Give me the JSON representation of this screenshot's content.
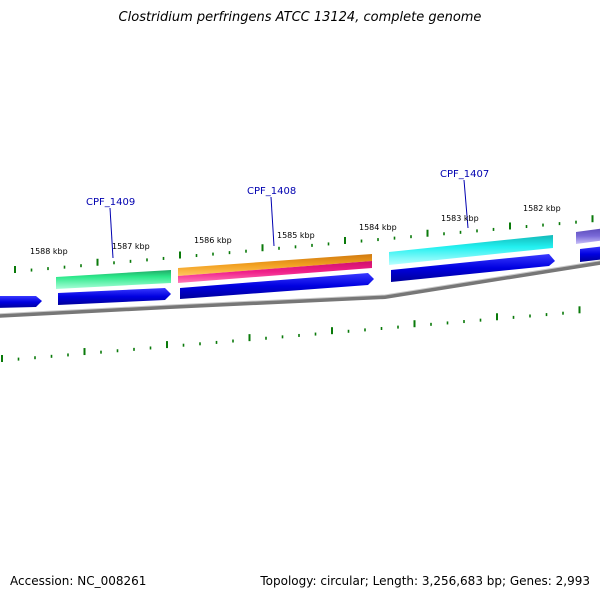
{
  "header": {
    "title": "Clostridium perfringens ATCC 13124, complete genome"
  },
  "footer": {
    "accession": "Accession: NC_008261",
    "summary": "Topology: circular; Length: 3,256,683 bp; Genes: 2,993"
  },
  "map": {
    "kbp_labels": [
      "1588 kbp",
      "1587 kbp",
      "1586 kbp",
      "1585 kbp",
      "1584 kbp",
      "1583 kbp",
      "1582 kbp"
    ],
    "gene_labels": [
      "CPF_1409",
      "CPF_1408",
      "CPF_1407"
    ],
    "colors": {
      "forward_strand": "#0000e0",
      "backbone": "#777777",
      "tick": "#0a7a0a",
      "label": "#0000b0",
      "gene_green": "#2ce88a",
      "gene_orange": "#f2a020",
      "gene_pink": "#f0208a",
      "gene_cyan": "#22f0f0",
      "gene_purple": "#7a6ad8"
    }
  }
}
